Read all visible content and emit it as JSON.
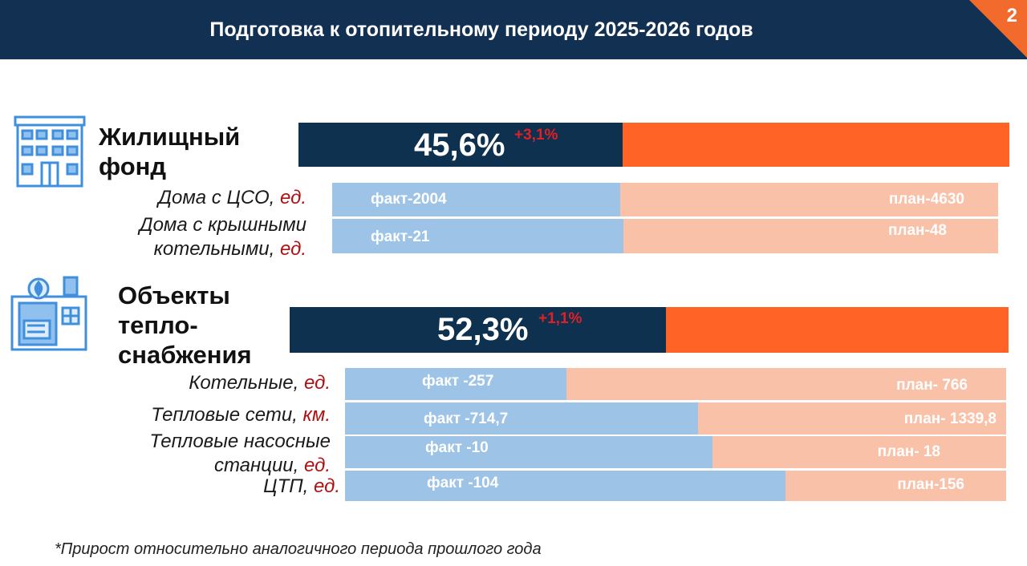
{
  "header": {
    "title": "Подготовка к отопительному периоду 2025-2026 годов",
    "page_number": "2"
  },
  "colors": {
    "header_bg": "#123152",
    "main_done": "#0f3150",
    "main_rest": "#ff6426",
    "sub_done": "#9dc3e6",
    "sub_rest": "#f9c2a8",
    "delta": "#e11f26",
    "accent": "#f26a2c"
  },
  "footnote": "*Прирост относительно аналогичного периода прошлого года",
  "chart_data": {
    "type": "bar",
    "sections": [
      {
        "title_lines": [
          "Жилищный",
          "фонд"
        ],
        "icon": "apartment-building-icon",
        "percent_label": "45,6%",
        "percent_value": 45.6,
        "delta_label": "+3,1%",
        "rows": [
          {
            "label_lines": [
              {
                "text": "Дома с ЦСО, ",
                "unit": "ед."
              }
            ],
            "fact_label": "факт-2004",
            "plan_label": "план-4630",
            "fact": 2004,
            "plan": 4630
          },
          {
            "label_lines": [
              {
                "text": "Дома с крышными",
                "unit": ""
              },
              {
                "text": "котельными, ",
                "unit": "ед."
              }
            ],
            "fact_label": "факт-21",
            "plan_label": "план-48",
            "fact": 21,
            "plan": 48
          }
        ]
      },
      {
        "title_lines": [
          "Объекты",
          "тепло-",
          "снабжения"
        ],
        "icon": "boiler-house-icon",
        "percent_label": "52,3%",
        "percent_value": 52.3,
        "delta_label": "+1,1%",
        "rows": [
          {
            "label_lines": [
              {
                "text": "Котельные, ",
                "unit": "ед."
              }
            ],
            "fact_label": "факт -257",
            "plan_label": "план- 766",
            "fact": 257,
            "plan": 766
          },
          {
            "label_lines": [
              {
                "text": "Тепловые сети, ",
                "unit": "км."
              }
            ],
            "fact_label": "факт -714,7",
            "plan_label": "план- 1339,8",
            "fact": 714.7,
            "plan": 1339.8
          },
          {
            "label_lines": [
              {
                "text": "Тепловые насосные",
                "unit": ""
              },
              {
                "text": "станции, ",
                "unit": "ед."
              }
            ],
            "fact_label": "факт -10",
            "plan_label": "план- 18",
            "fact": 10,
            "plan": 18
          },
          {
            "label_lines": [
              {
                "text": "ЦТП, ",
                "unit": "ед."
              }
            ],
            "fact_label": "факт -104",
            "plan_label": "план-156",
            "fact": 104,
            "plan": 156
          }
        ]
      }
    ]
  }
}
